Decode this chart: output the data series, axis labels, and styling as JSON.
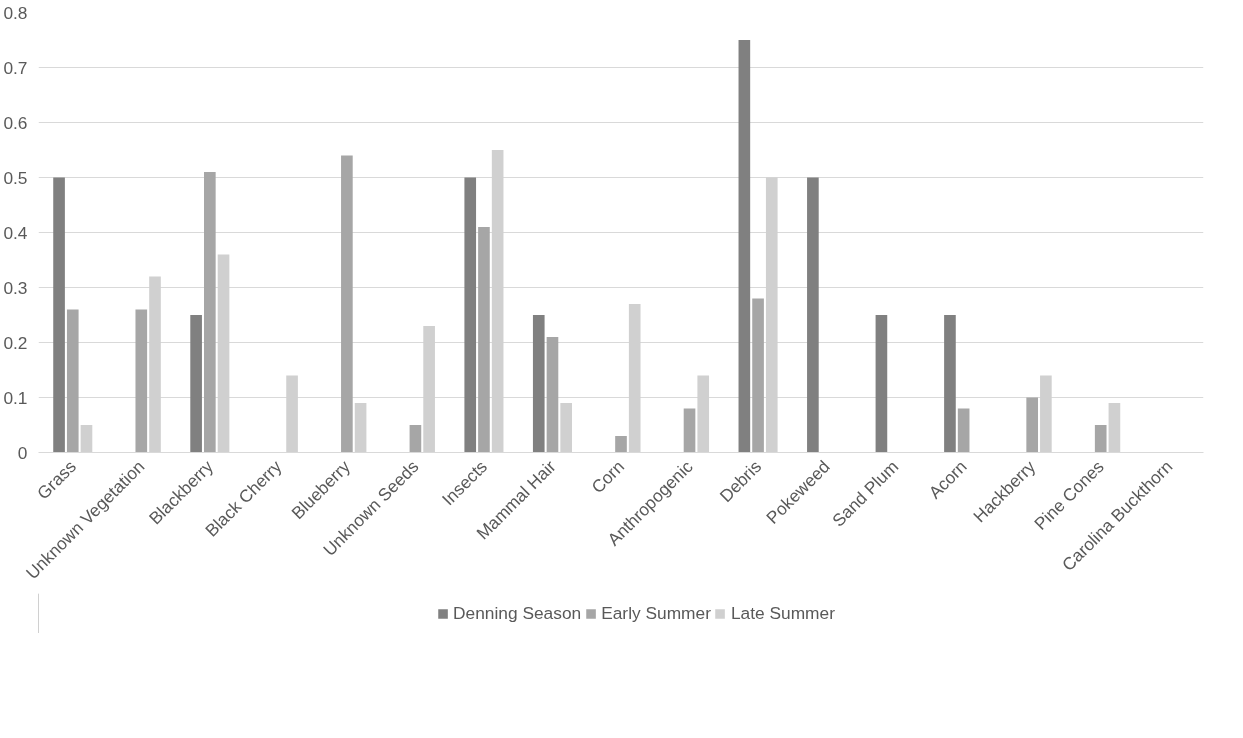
{
  "chart_data": {
    "type": "bar",
    "categories": [
      "Grass",
      "Unknown Vegetation",
      "Blackberry",
      "Black Cherry",
      "Blueberry",
      "Unknown Seeds",
      "Insects",
      "Mammal Hair",
      "Corn",
      "Anthropogenic",
      "Debris",
      "Pokeweed",
      "Sand Plum",
      "Acorn",
      "Hackberry",
      "Pine Cones",
      "Carolina Buckthorn"
    ],
    "series": [
      {
        "name": "Denning Season",
        "color": "#808080",
        "values": [
          0.5,
          0,
          0.25,
          0,
          0,
          0,
          0.5,
          0.25,
          0,
          0,
          0.75,
          0.5,
          0.25,
          0.25,
          0,
          0,
          0
        ]
      },
      {
        "name": "Early Summer",
        "color": "#a6a6a6",
        "values": [
          0.26,
          0.26,
          0.51,
          0,
          0.54,
          0.05,
          0.41,
          0.21,
          0.03,
          0.08,
          0.28,
          0,
          0,
          0.08,
          0.1,
          0.05,
          0
        ]
      },
      {
        "name": "Late Summer",
        "color": "#d0d0d0",
        "values": [
          0.05,
          0.32,
          0.36,
          0.14,
          0.09,
          0.23,
          0.55,
          0.09,
          0.27,
          0.14,
          0.5,
          0,
          0,
          0,
          0.14,
          0.09,
          0
        ]
      }
    ],
    "ylim": [
      0,
      0.8
    ],
    "yticks": [
      {
        "value": 0,
        "label": "0"
      },
      0.1,
      0.2,
      0.3,
      0.4,
      0.5,
      0.6,
      0.7,
      0.8
    ],
    "grid": "y",
    "legend": "bottom"
  }
}
